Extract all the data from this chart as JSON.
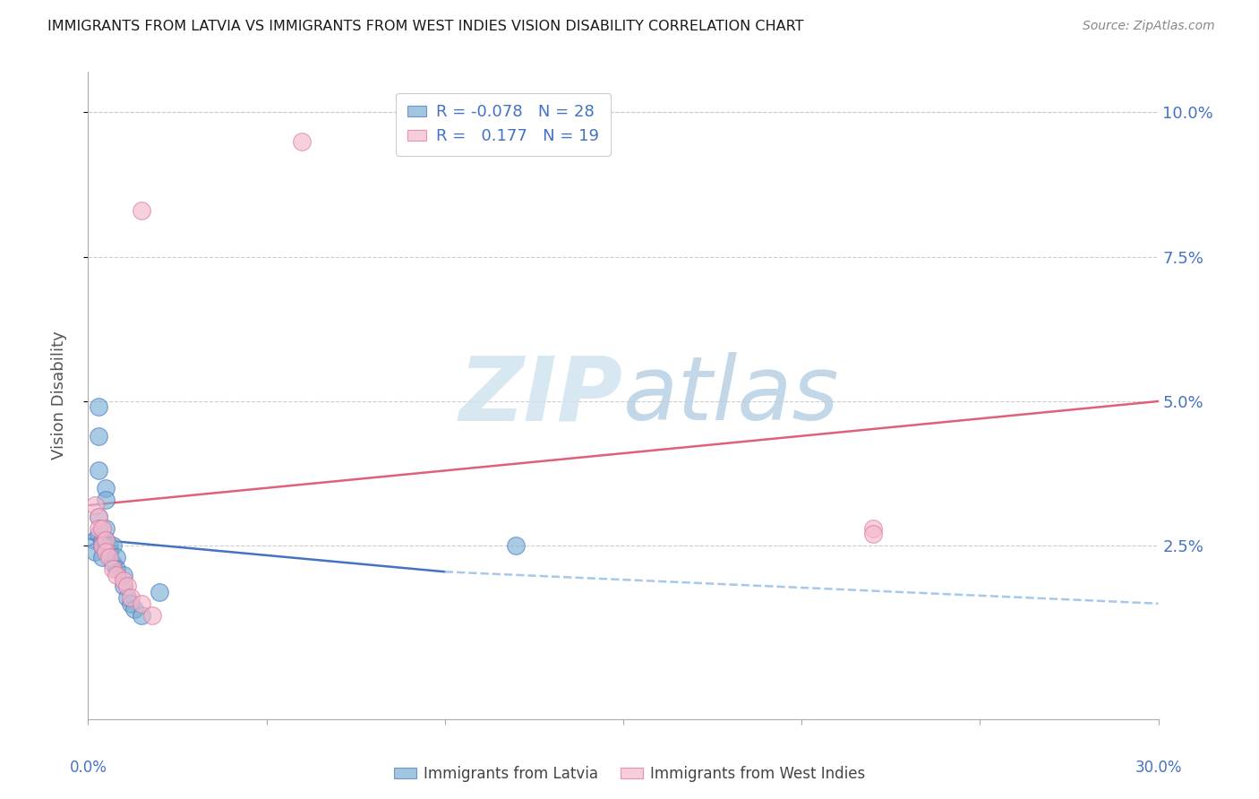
{
  "title": "IMMIGRANTS FROM LATVIA VS IMMIGRANTS FROM WEST INDIES VISION DISABILITY CORRELATION CHART",
  "source": "Source: ZipAtlas.com",
  "ylabel": "Vision Disability",
  "ytick_labels": [
    "10.0%",
    "7.5%",
    "5.0%",
    "2.5%"
  ],
  "ytick_values": [
    0.1,
    0.075,
    0.05,
    0.025
  ],
  "xlim": [
    0.0,
    0.3
  ],
  "ylim": [
    -0.005,
    0.107
  ],
  "latvia_color": "#7bafd4",
  "latvia_edge": "#4472c4",
  "westindies_color": "#f4b8cc",
  "westindies_edge": "#e07090",
  "latvia_R": -0.078,
  "latvia_N": 28,
  "westindies_R": 0.177,
  "westindies_N": 19,
  "title_color": "#1a1a1a",
  "axis_color": "#4472c4",
  "watermark_color": "#d0e4f0",
  "background_color": "#ffffff",
  "grid_color": "#cccccc",
  "latvia_line_color": "#4472c4",
  "westindies_line_color": "#e0607a",
  "latvia_dash_color": "#a8c8e8",
  "latvia_x": [
    0.002,
    0.002,
    0.003,
    0.003,
    0.003,
    0.003,
    0.003,
    0.004,
    0.004,
    0.004,
    0.005,
    0.005,
    0.005,
    0.005,
    0.006,
    0.006,
    0.007,
    0.007,
    0.008,
    0.008,
    0.01,
    0.01,
    0.011,
    0.012,
    0.013,
    0.015,
    0.12,
    0.02
  ],
  "latvia_y": [
    0.026,
    0.024,
    0.038,
    0.044,
    0.049,
    0.03,
    0.027,
    0.026,
    0.025,
    0.023,
    0.035,
    0.033,
    0.028,
    0.026,
    0.025,
    0.024,
    0.025,
    0.022,
    0.023,
    0.021,
    0.02,
    0.018,
    0.016,
    0.015,
    0.014,
    0.013,
    0.025,
    0.017
  ],
  "westindies_x": [
    0.002,
    0.003,
    0.003,
    0.004,
    0.004,
    0.005,
    0.005,
    0.006,
    0.007,
    0.008,
    0.01,
    0.011,
    0.012,
    0.015,
    0.018,
    0.06,
    0.22,
    0.22,
    0.015
  ],
  "westindies_y": [
    0.032,
    0.03,
    0.028,
    0.028,
    0.025,
    0.026,
    0.024,
    0.023,
    0.021,
    0.02,
    0.019,
    0.018,
    0.016,
    0.015,
    0.013,
    0.095,
    0.028,
    0.027,
    0.083
  ],
  "trend_lat_x0": 0.0,
  "trend_lat_y0": 0.0262,
  "trend_lat_xsolid": 0.1,
  "trend_lat_ysolid": 0.0205,
  "trend_lat_x1": 0.3,
  "trend_lat_y1": 0.015,
  "trend_wi_x0": 0.0,
  "trend_wi_y0": 0.032,
  "trend_wi_x1": 0.3,
  "trend_wi_y1": 0.05
}
